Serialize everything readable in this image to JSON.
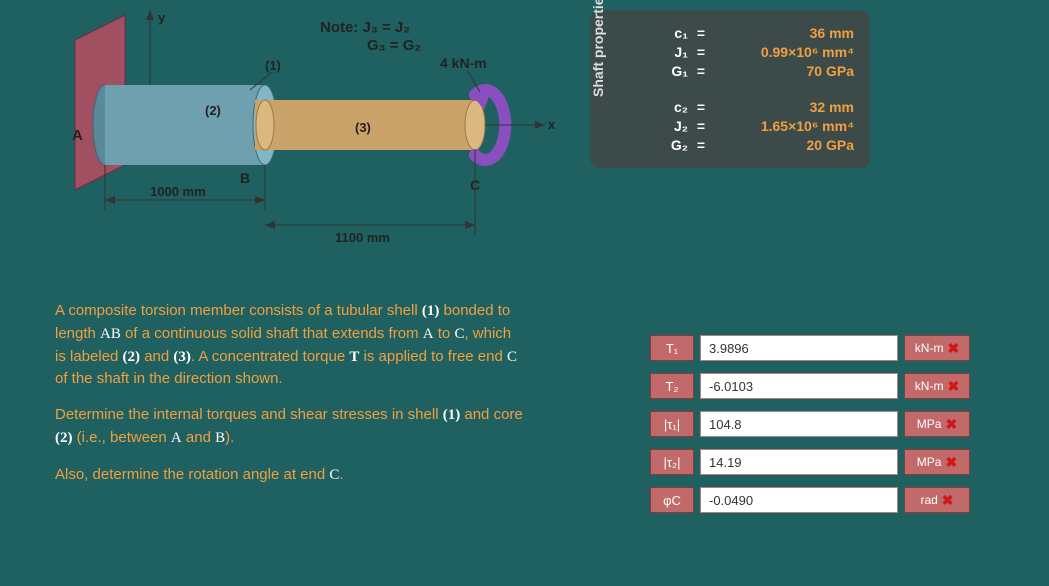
{
  "diagram": {
    "note_line1": "Note:  J₃ = J₂",
    "note_line2": "G₃ = G₂",
    "torque_label": "4 kN-m",
    "axis_x": "x",
    "axis_y": "y",
    "point_A": "A",
    "point_B": "B",
    "point_C": "C",
    "seg1": "(1)",
    "seg2": "(2)",
    "seg3": "(3)",
    "dim_AB": "1000 mm",
    "dim_BC": "1100 mm",
    "colors": {
      "bg": "#1f6060",
      "wall": "#a05060",
      "shell": "#6fa0b0",
      "core": "#c9a36a",
      "arrow": "#8a4fbf",
      "text": "#222"
    }
  },
  "properties": {
    "title": "Shaft properties",
    "rows": [
      {
        "sym": "c₁",
        "val": "36 mm"
      },
      {
        "sym": "J₁",
        "val": "0.99×10⁶ mm⁴"
      },
      {
        "sym": "G₁",
        "val": "70 GPa"
      },
      null,
      {
        "sym": "c₂",
        "val": "32 mm"
      },
      {
        "sym": "J₂",
        "val": "1.65×10⁶ mm⁴"
      },
      {
        "sym": "G₂",
        "val": "20 GPa"
      }
    ]
  },
  "problem": {
    "p1_a": "A composite torsion member consists of a tubular shell ",
    "p1_b": " bonded to length ",
    "p1_c": " of a continuous solid shaft that extends from ",
    "p1_d": " to ",
    "p1_e": ", which is labeled ",
    "p1_f": " and ",
    "p1_g": ". A concentrated torque ",
    "p1_h": " is applied to free end ",
    "p1_i": " of the shaft in the direction shown.",
    "label_1": "(1)",
    "label_AB": "AB",
    "label_A": "A",
    "label_C_1": "C",
    "label_2": "(2)",
    "label_3": "(3)",
    "label_T": "T",
    "label_C_2": "C",
    "p2_a": "Determine the internal torques and shear stresses in shell ",
    "p2_b": " and core ",
    "p2_c": " (i.e., between ",
    "p2_d": " and ",
    "p2_e": ").",
    "label_1b": "(1)",
    "label_2b": "(2)",
    "label_A2": "A",
    "label_B2": "B",
    "p3": "Also, determine the rotation angle at end ",
    "label_C3": "C",
    "period": "."
  },
  "answers": [
    {
      "label": "T₁",
      "value": "3.9896",
      "unit": "kN-m",
      "status": "wrong"
    },
    {
      "label": "T₂",
      "value": "-6.0103",
      "unit": "kN-m",
      "status": "wrong"
    },
    {
      "label": "|τ₁|",
      "value": "104.8",
      "unit": "MPa",
      "status": "wrong"
    },
    {
      "label": "|τ₂|",
      "value": "14.19",
      "unit": "MPa",
      "status": "wrong"
    },
    {
      "label": "φC",
      "value": "-0.0490",
      "unit": "rad",
      "status": "wrong"
    }
  ]
}
